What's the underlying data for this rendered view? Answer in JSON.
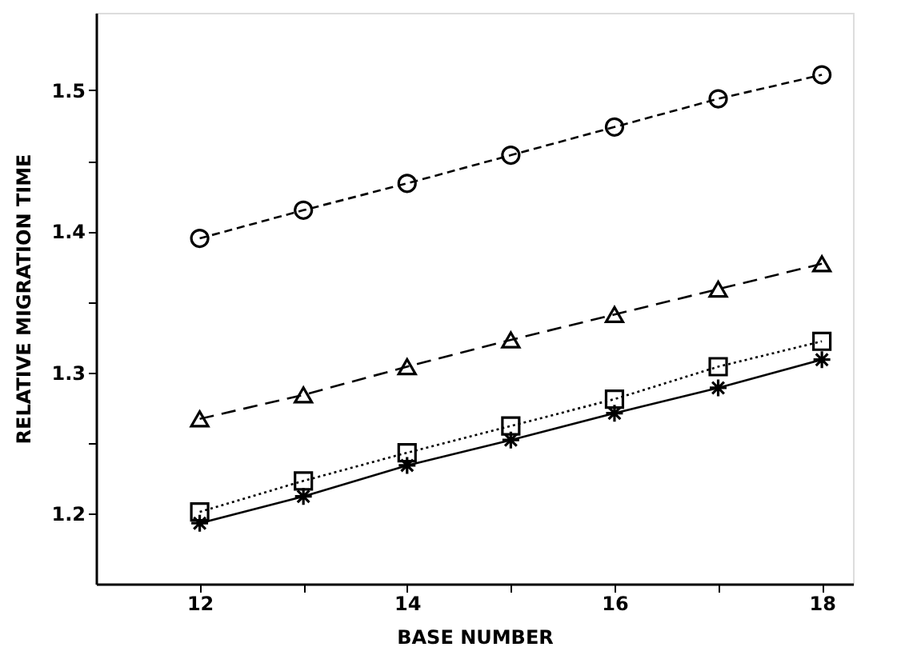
{
  "chart_data": {
    "type": "line",
    "xlabel": "BASE NUMBER",
    "ylabel": "RELATIVE MIGRATION TIME",
    "x": [
      12,
      13,
      14,
      15,
      16,
      17,
      18
    ],
    "series": [
      {
        "color": "#000000",
        "marker": "circle",
        "line_style": "dashed",
        "values": [
          1.395,
          1.415,
          1.434,
          1.454,
          1.474,
          1.494,
          1.511
        ]
      },
      {
        "color": "#000000",
        "marker": "triangle",
        "line_style": "dashed",
        "values": [
          1.267,
          1.284,
          1.304,
          1.323,
          1.341,
          1.359,
          1.377
        ]
      },
      {
        "color": "#000000",
        "marker": "square",
        "line_style": "dotted",
        "values": [
          1.201,
          1.223,
          1.243,
          1.262,
          1.281,
          1.304,
          1.322
        ]
      },
      {
        "color": "#000000",
        "marker": "cross",
        "line_style": "solid",
        "values": [
          1.193,
          1.212,
          1.234,
          1.252,
          1.271,
          1.289,
          1.309
        ]
      }
    ],
    "xlim": [
      11,
      18.3
    ],
    "xticks": [
      12,
      {
        "value": 13,
        "label": null
      },
      14,
      {
        "value": 15,
        "label": null
      },
      16,
      {
        "value": 17,
        "label": null
      },
      18
    ],
    "ylim": [
      1.15,
      1.555
    ],
    "yticks": [
      1.2,
      {
        "value": 1.25,
        "label": null
      },
      1.3,
      {
        "value": 1.35,
        "label": null
      },
      1.4,
      {
        "value": 1.45,
        "label": null
      },
      1.5
    ],
    "grid": false
  }
}
